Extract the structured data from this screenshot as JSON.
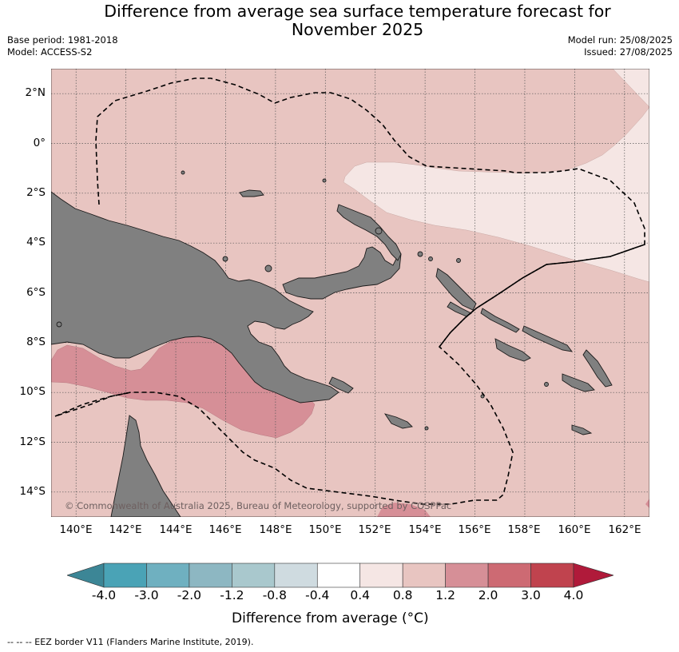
{
  "title": "Difference from average sea surface temperature forecast for November 2025",
  "title_line1": "Difference from average sea surface temperature forecast for",
  "title_line2": "November 2025",
  "base_period": "Base period: 1981-2018",
  "model": "Model: ACCESS-S2",
  "model_run": "Model run: 25/08/2025",
  "issued": "Issued: 27/08/2025",
  "map": {
    "lon_range": [
      139,
      163
    ],
    "lat_range": [
      -15,
      3
    ],
    "lat_labels": [
      "2°N",
      "0°",
      "2°S",
      "4°S",
      "6°S",
      "8°S",
      "10°S",
      "12°S",
      "14°S"
    ],
    "lon_labels": [
      "140°E",
      "142°E",
      "144°E",
      "146°E",
      "148°E",
      "150°E",
      "152°E",
      "154°E",
      "156°E",
      "158°E",
      "160°E",
      "162°E"
    ],
    "land_color": "#808080",
    "copyright": "© Commonwealth of Australia 2025, Bureau of Meteorology, supported by COSPPac"
  },
  "colorbar": {
    "ticks": [
      "-4.0",
      "-3.0",
      "-2.0",
      "-1.2",
      "-0.8",
      "-0.4",
      "0.4",
      "0.8",
      "1.2",
      "2.0",
      "3.0",
      "4.0"
    ],
    "colors": [
      "#3c8696",
      "#4aa3b6",
      "#6fb0c0",
      "#8db7c2",
      "#a9c8cd",
      "#cfdbe0",
      "#ffffff",
      "#f5e6e4",
      "#e8c5c1",
      "#d68f97",
      "#cd6a73",
      "#c0434e",
      "#b01a3a"
    ],
    "label": "Difference from average (°C)"
  },
  "legend": {
    "eez_line": "-- -- -- EEZ border V11 (Flanders Marine Institute, 2019)."
  }
}
